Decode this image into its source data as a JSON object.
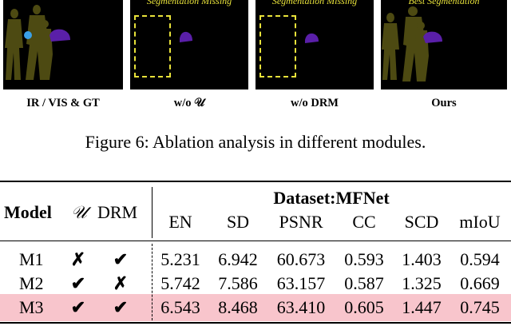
{
  "figure": {
    "panels": [
      {
        "label": "IR / VIS & GT",
        "overlay": ""
      },
      {
        "label": "w/o 𝒰",
        "overlay": "Segmentation Missing"
      },
      {
        "label": "w/o DRM",
        "overlay": "Segmentation Missing"
      },
      {
        "label": "Ours",
        "overlay": "Best Segmentation"
      }
    ],
    "caption": "Figure 6: Ablation analysis in different modules.",
    "colors": {
      "person": "#4d4a12",
      "car": "#5a1fa8",
      "bike": "#3aa0e8",
      "annotation": "#e8e23a"
    }
  },
  "table": {
    "header": {
      "model": "Model",
      "u_symbol": "𝒰",
      "drm": "DRM",
      "dataset": "Dataset:MFNet"
    },
    "metrics": [
      "EN",
      "SD",
      "PSNR",
      "CC",
      "SCD",
      "mIoU"
    ],
    "rows": [
      {
        "model": "M1",
        "u": "✗",
        "drm": "✔",
        "values": [
          "5.231",
          "6.942",
          "60.673",
          "0.593",
          "1.403",
          "0.594"
        ]
      },
      {
        "model": "M2",
        "u": "✔",
        "drm": "✗",
        "values": [
          "5.742",
          "7.586",
          "63.157",
          "0.587",
          "1.325",
          "0.669"
        ]
      },
      {
        "model": "M3",
        "u": "✔",
        "drm": "✔",
        "values": [
          "6.543",
          "8.468",
          "63.410",
          "0.605",
          "1.447",
          "0.745"
        ]
      }
    ],
    "highlight_color": "#f8c5cc"
  }
}
